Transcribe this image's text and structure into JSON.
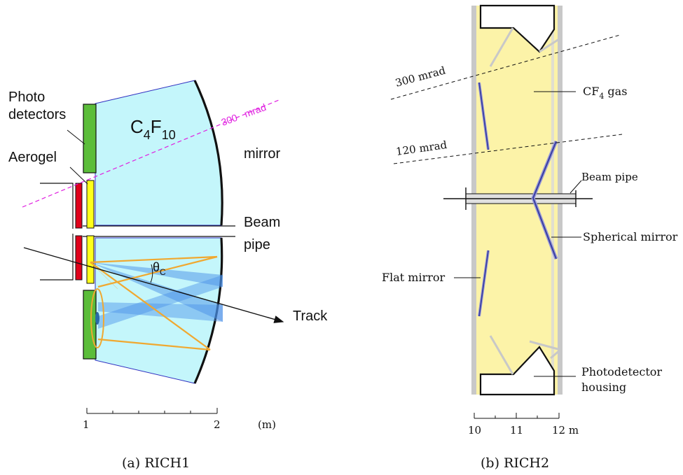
{
  "rich1": {
    "labels": {
      "photo_line1": "Photo",
      "photo_line2": "detectors",
      "aerogel": "Aerogel",
      "gas_main": "C",
      "gas_sub1": "4",
      "gas_f": "F",
      "gas_sub2": "10",
      "angle": "300   mrad",
      "mirror": "mirror",
      "beam_line1": "Beam",
      "beam_line2": "pipe",
      "theta_main": "θ",
      "theta_sub": "C",
      "track": "Track"
    },
    "scale": {
      "ticks": [
        "1",
        "2"
      ],
      "unit": "(m)"
    },
    "caption": "(a) RICH1"
  },
  "rich2": {
    "labels": {
      "angle_outer": "300 mrad",
      "angle_inner": "120 mrad",
      "gas_main": "CF",
      "gas_sub": "4",
      "gas_rest": " gas",
      "beam_pipe": "Beam pipe",
      "spherical_mirror": "Spherical mirror",
      "flat_mirror": "Flat mirror",
      "housing_line1": "Photodetector",
      "housing_line2": "housing"
    },
    "scale": {
      "ticks": [
        "10",
        "11",
        "12 m"
      ]
    },
    "caption": "(b) RICH2"
  },
  "colors": {
    "gas_rich1": "#c4f6fb",
    "gas_rich2": "#fcf3a8",
    "detector": "#5bbd3a",
    "aerogel": "#ffff1a",
    "radiator_red": "#e0001a",
    "photon": "#f0a830",
    "cone": "#4a90e8",
    "angle_rich1": "#e020e0",
    "mirror_rich2": "#3a3fa0"
  }
}
